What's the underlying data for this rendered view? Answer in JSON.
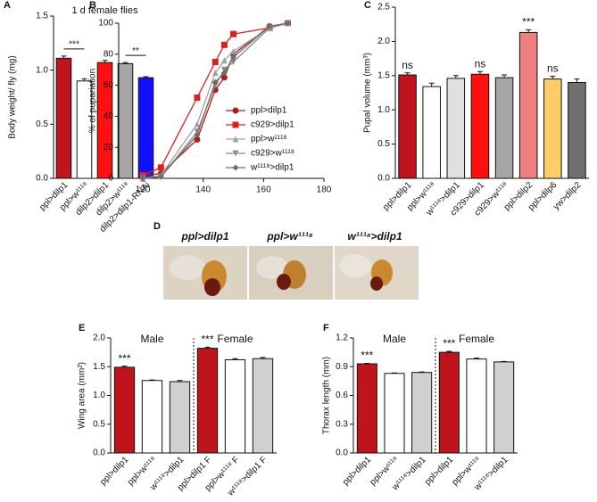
{
  "chart_data": [
    {
      "panel": "A",
      "type": "bar",
      "title": "1 d female flies",
      "y_label": "Body weight/ fly (mg)",
      "categories": [
        "ppl>dilp1",
        "ppl>w¹¹¹⁸",
        "dilp2>dilp1",
        "dilp2>w¹¹¹⁸",
        "dilp2>dilp1-RNAi"
      ],
      "values": [
        1.11,
        0.9,
        1.07,
        1.06,
        0.93
      ],
      "errors": [
        0.02,
        0.02,
        0.02,
        0.01,
        0.01
      ],
      "colors": [
        "#c0141c",
        "#ffffff",
        "#ff1010",
        "#a6a6a6",
        "#1010ff"
      ],
      "ylim": [
        0,
        1.5
      ],
      "yticks": [
        {
          "value": 0,
          "label": "0.0"
        },
        0.5,
        {
          "value": 1,
          "label": "1.0"
        },
        1.5
      ],
      "annotations": [
        "***",
        "**"
      ]
    },
    {
      "panel": "B",
      "type": "line",
      "y_label": "% of pupariation",
      "x": [
        120,
        126,
        138,
        144,
        147,
        150,
        162,
        168
      ],
      "series": [
        {
          "name": "ppl>dilp1",
          "color": "#b01c1c",
          "marker": "circle",
          "values": [
            2,
            3,
            25,
            57,
            65,
            80,
            98,
            100
          ]
        },
        {
          "name": "c929>dilp1",
          "color": "#e02020",
          "marker": "square",
          "values": [
            2,
            7,
            52,
            75,
            86,
            93,
            97,
            100
          ]
        },
        {
          "name": "ppl>w¹¹¹⁸",
          "color": "#a0a0a0",
          "marker": "triangle-up",
          "values": [
            0,
            2,
            35,
            68,
            76,
            82,
            97,
            100
          ]
        },
        {
          "name": "c929>w¹¹¹⁸",
          "color": "#8c8c8c",
          "marker": "triangle-down",
          "values": [
            0,
            1,
            30,
            60,
            70,
            75,
            97,
            100
          ]
        },
        {
          "name": "w¹¹¹⁸>dilp1",
          "color": "#6e6e6e",
          "marker": "diamond",
          "values": [
            0,
            1,
            28,
            62,
            68,
            78,
            98,
            100
          ]
        }
      ],
      "xlim": [
        112,
        180
      ],
      "xticks": [
        120,
        140,
        160,
        180
      ],
      "ylim": [
        0,
        100
      ],
      "yticks": [
        0,
        20,
        40,
        60,
        80,
        100
      ],
      "legend": "lower right"
    },
    {
      "panel": "C",
      "type": "bar",
      "y_label": "Pupal volume (mm³)",
      "categories": [
        "ppl>dilp1",
        "ppl>w¹¹¹⁸",
        "w¹¹¹⁸>dilp1",
        "c929>dilp1",
        "c929>w¹¹¹⁸",
        "ppl>dilp2",
        "ppl>dilp6",
        "yw>dilp2"
      ],
      "values": [
        1.51,
        1.34,
        1.46,
        1.52,
        1.47,
        2.13,
        1.45,
        1.4
      ],
      "errors": [
        0.03,
        0.05,
        0.04,
        0.04,
        0.04,
        0.04,
        0.04,
        0.05
      ],
      "colors": [
        "#c0141c",
        "#ffffff",
        "#e0e0e0",
        "#ff1010",
        "#a6a6a6",
        "#f08080",
        "#ffcc66",
        "#707070"
      ],
      "ylim": [
        0,
        2.5
      ],
      "yticks": [
        {
          "value": 0,
          "label": "0.0"
        },
        0.5,
        {
          "value": 1,
          "label": "1.0"
        },
        1.5,
        {
          "value": 2,
          "label": "2.0"
        },
        2.5
      ],
      "annotations": [
        "ns",
        "ns",
        "***",
        "ns"
      ]
    },
    {
      "panel": "E",
      "type": "bar",
      "y_label": "Wing area (mm²)",
      "groups": [
        "Male",
        "Female"
      ],
      "categories": [
        "ppl>dilp1",
        "ppl>w¹¹¹⁸",
        "w¹¹¹⁸>dilp1",
        "ppl>dilp1 F",
        "ppl>w¹¹¹⁸ F",
        "w¹¹¹⁸>dilp1 F"
      ],
      "values": [
        1.49,
        1.26,
        1.24,
        1.82,
        1.62,
        1.64
      ],
      "errors": [
        0.02,
        0.01,
        0.02,
        0.02,
        0.02,
        0.02
      ],
      "colors": [
        "#c0141c",
        "#ffffff",
        "#d0d0d0",
        "#c0141c",
        "#ffffff",
        "#d0d0d0"
      ],
      "ylim": [
        0,
        2
      ],
      "yticks": [
        {
          "value": 0,
          "label": "0.0"
        },
        0.5,
        {
          "value": 1,
          "label": "1.0"
        },
        1.5,
        {
          "value": 2,
          "label": "2.0"
        }
      ],
      "annotations": [
        "***",
        "***"
      ]
    },
    {
      "panel": "F",
      "type": "bar",
      "y_label": "Thorax length (mm)",
      "groups": [
        "Male",
        "Female"
      ],
      "categories": [
        "ppl>dilp1",
        "ppl>w¹¹¹⁸",
        "w¹¹¹⁸>dilp1",
        "ppl>dilp1",
        "ppl>w¹¹¹⁸",
        "w¹¹¹⁸>dilp1"
      ],
      "values": [
        0.93,
        0.83,
        0.84,
        1.05,
        0.98,
        0.95
      ],
      "errors": [
        0.005,
        0.005,
        0.005,
        0.01,
        0.01,
        0.005
      ],
      "colors": [
        "#c0141c",
        "#ffffff",
        "#d0d0d0",
        "#c0141c",
        "#ffffff",
        "#d0d0d0"
      ],
      "ylim": [
        0,
        1.2
      ],
      "yticks": [
        {
          "value": 0,
          "label": "0.0"
        },
        0.3,
        0.6,
        0.9,
        1.2
      ],
      "annotations": [
        "***",
        "***"
      ]
    }
  ],
  "photos": {
    "panel": "D",
    "labels": [
      "ppl>dilp1",
      "ppl>w¹¹¹⁸",
      "w¹¹¹⁸>dilp1"
    ]
  }
}
